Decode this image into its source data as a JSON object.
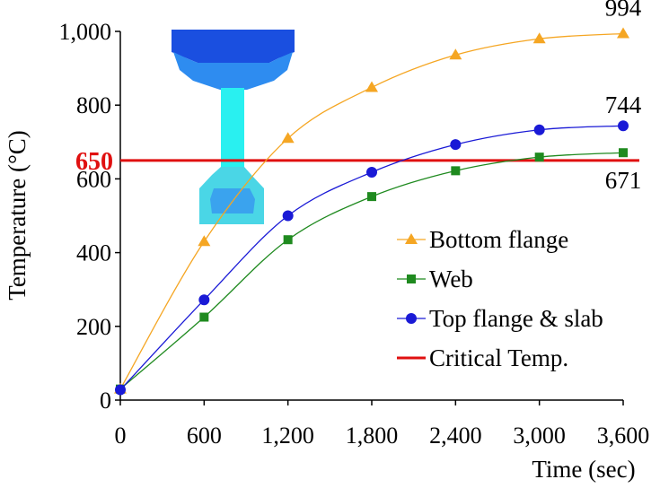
{
  "chart_data": {
    "type": "line",
    "title": "",
    "xlabel": "Time (sec)",
    "ylabel": "Temperature   (°C)",
    "xlim": [
      0,
      3600
    ],
    "ylim": [
      0,
      1000
    ],
    "x_ticks": [
      0,
      600,
      1200,
      1800,
      2400,
      3000,
      3600
    ],
    "x_tick_labels": [
      "0",
      "600",
      "1,200",
      "1,800",
      "2,400",
      "3,000",
      "3,600"
    ],
    "y_ticks": [
      0,
      200,
      400,
      600,
      800,
      1000
    ],
    "y_tick_labels": [
      "0",
      "200",
      "400",
      "600",
      "800",
      "1,000"
    ],
    "grid": false,
    "legend": "lower-right",
    "series": [
      {
        "name": "Bottom flange",
        "color": "#f5a623",
        "marker": "triangle",
        "x": [
          0,
          600,
          1200,
          1800,
          2400,
          3000,
          3600
        ],
        "y": [
          30,
          430,
          710,
          848,
          936,
          980,
          994
        ],
        "end_label": "994"
      },
      {
        "name": "Web",
        "color": "#1f8a1f",
        "marker": "square",
        "x": [
          0,
          600,
          1200,
          1800,
          2400,
          3000,
          3600
        ],
        "y": [
          30,
          225,
          435,
          552,
          622,
          659,
          671
        ],
        "end_label": "671"
      },
      {
        "name": "Top flange & slab",
        "color": "#1a1ad6",
        "marker": "circle",
        "x": [
          0,
          600,
          1200,
          1800,
          2400,
          3000,
          3600
        ],
        "y": [
          28,
          272,
          500,
          618,
          693,
          733,
          744
        ],
        "end_label": "744"
      }
    ],
    "critical": {
      "name": "Critical Temp.",
      "value": 650,
      "label": "650",
      "color": "#e01010"
    }
  },
  "inset": {
    "colors": {
      "top": "#1a4fe0",
      "upper": "#2e8cf0",
      "mid": "#3ec0f2",
      "web": "#29f0f0",
      "lower": "#4ad6e6",
      "core": "#3aa3ee"
    }
  }
}
